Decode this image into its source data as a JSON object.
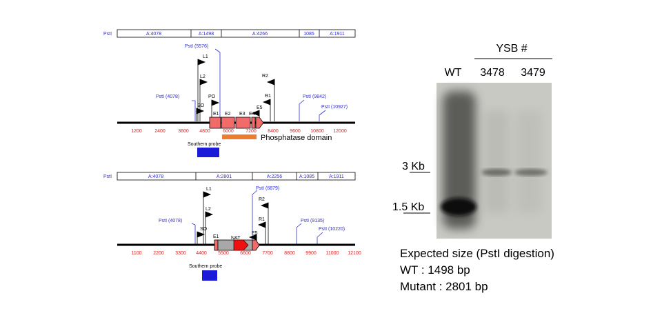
{
  "top_map": {
    "fragment_bar": [
      {
        "label": "PstI"
      },
      {
        "label": "A:4078"
      },
      {
        "label": "A:1498"
      },
      {
        "label": "A:4266"
      },
      {
        "label": "1085"
      },
      {
        "label": "A:1911"
      }
    ],
    "sites": [
      {
        "label": "PstI (5576)"
      },
      {
        "label": "PstI (4078)"
      },
      {
        "label": "PstI (9842)"
      },
      {
        "label": "PstI (10927)"
      }
    ],
    "primers": [
      "L1",
      "L2",
      "PO",
      "SO",
      "R2",
      "R1",
      "E5"
    ],
    "exons": [
      "E1",
      "E2",
      "E3",
      "E4"
    ],
    "ruler_ticks": [
      "1200",
      "2400",
      "3600",
      "4800",
      "6000",
      "7200",
      "8400",
      "9600",
      "10800",
      "12000"
    ],
    "domain_label": "Phosphatase domain",
    "probe_label": "Southern probe"
  },
  "bottom_map": {
    "fragment_bar": [
      {
        "label": "PstI"
      },
      {
        "label": "A:4078"
      },
      {
        "label": "A:2801"
      },
      {
        "label": "A:2256"
      },
      {
        "label": "A:1085"
      },
      {
        "label": "A:1911"
      }
    ],
    "sites": [
      {
        "label": "PstI (6879)"
      },
      {
        "label": "PstI (4078)"
      },
      {
        "label": "PstI (9135)"
      },
      {
        "label": "PstI (10220)"
      }
    ],
    "primers": [
      "L1",
      "L2",
      "SO",
      "R2",
      "R1",
      "E5"
    ],
    "exons": [
      "E1"
    ],
    "marker": "NAT",
    "ruler_ticks": [
      "1100",
      "2200",
      "3300",
      "4400",
      "5500",
      "6600",
      "7700",
      "8800",
      "9900",
      "11000",
      "12100"
    ],
    "probe_label": "Southern probe"
  },
  "blot": {
    "header": "YSB #",
    "lanes": [
      "WT",
      "3478",
      "3479"
    ],
    "markers": [
      "3 Kb",
      "1.5 Kb"
    ]
  },
  "caption": {
    "title": "Expected size (PstI digestion)",
    "wt": "WT : 1498 bp",
    "mutant": "Mutant : 2801 bp"
  },
  "colors": {
    "site_blue": "#2b2bd6",
    "ruler_red": "#dd2222",
    "exon_fill": "#f26b6b",
    "domain_orange": "#ef7d2f",
    "probe_blue": "#1a1ad8",
    "nat_gray": "#a8a8a8",
    "nat_arrow": "#ee1111"
  }
}
